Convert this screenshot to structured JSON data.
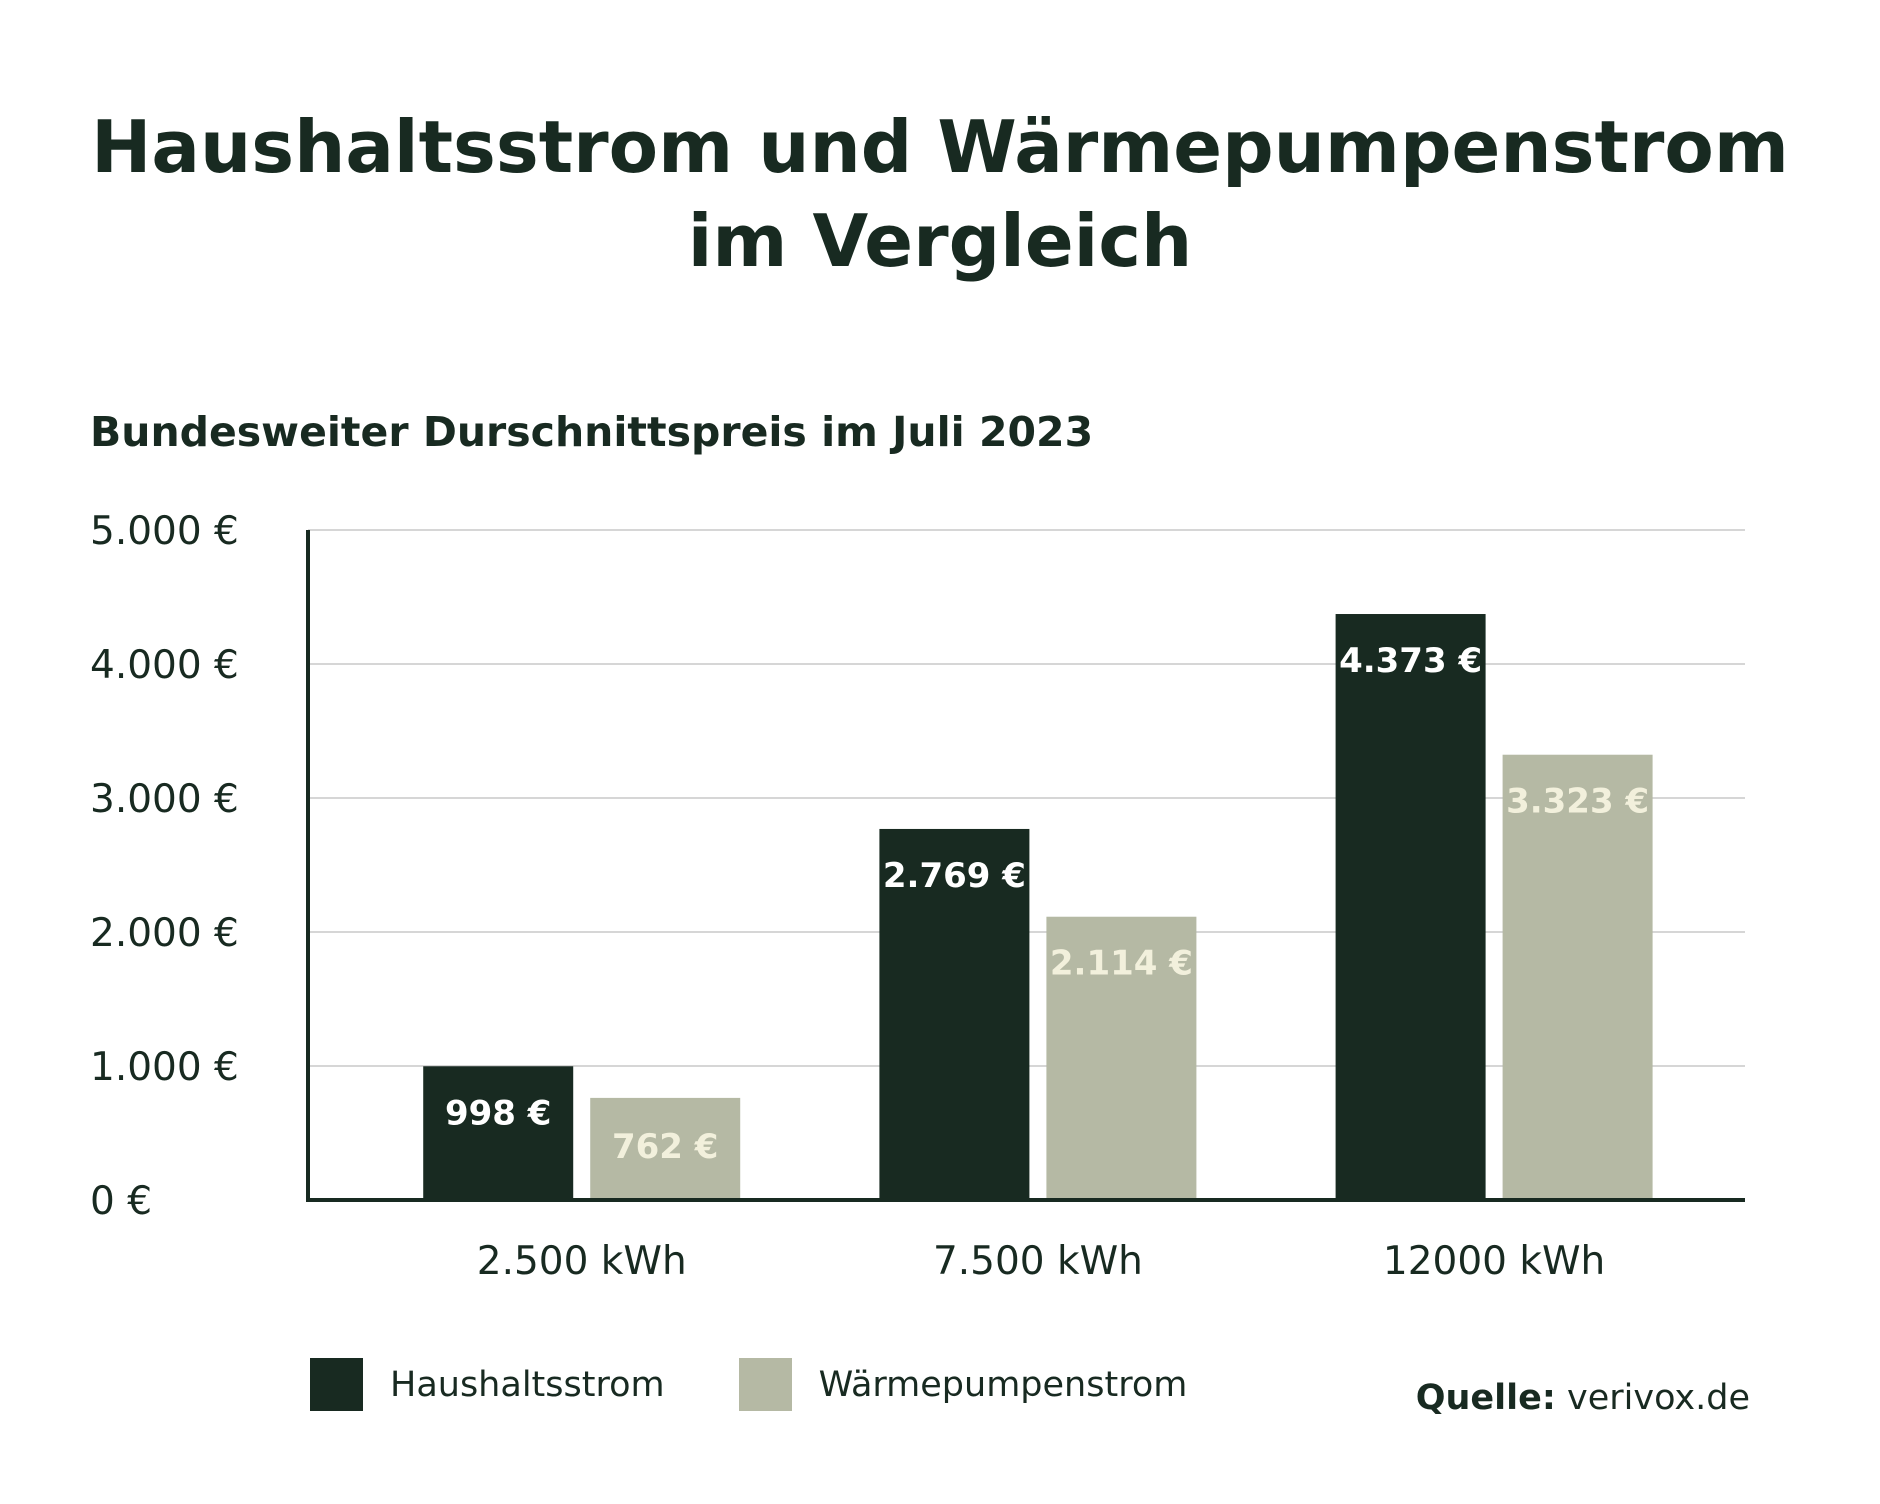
{
  "title_line1": "Haushaltsstrom und Wärmepumpenstrom",
  "title_line2": "im Vergleich",
  "source_label": "Quelle:",
  "source_value": "verivox.de",
  "colors": {
    "dark": "#182a21",
    "light": "#b5b9a4",
    "grid": "#c8c8c8",
    "label_light": "#f2f0dc"
  },
  "chart_data": {
    "type": "bar",
    "title": "Haushaltsstrom und Wärmepumpenstrom im Vergleich",
    "subtitle": "Bundesweiter Durschnittspreis im Juli 2023",
    "categories": [
      "2.500 kWh",
      "7.500 kWh",
      "12000 kWh"
    ],
    "series": [
      {
        "name": "Haushaltsstrom",
        "values": [
          998,
          2769,
          4373
        ],
        "labels": [
          "998 €",
          "2.769 €",
          "4.373 €"
        ]
      },
      {
        "name": "Wärmepumpenstrom",
        "values": [
          762,
          2114,
          3323
        ],
        "labels": [
          "762 €",
          "2.114 €",
          "3.323 €"
        ]
      }
    ],
    "ylim": [
      0,
      5000
    ],
    "yticks": [
      0,
      1000,
      2000,
      3000,
      4000,
      5000
    ],
    "ytick_labels": [
      "0 €",
      "1.000 €",
      "2.000 €",
      "3.000 €",
      "4.000 €",
      "5.000 €"
    ],
    "grid": true,
    "legend_position": "bottom-left"
  }
}
